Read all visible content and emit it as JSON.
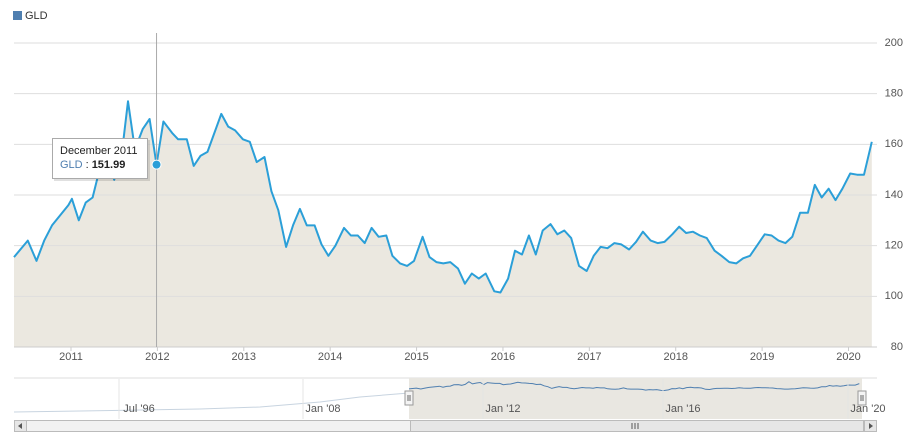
{
  "chart_data": {
    "type": "area",
    "ylim": [
      80,
      200
    ],
    "yticks": [
      80,
      100,
      120,
      140,
      160,
      180,
      200
    ],
    "xlim": [
      2010.34,
      2020.33
    ],
    "xticks": [
      2011,
      2012,
      2013,
      2014,
      2015,
      2016,
      2017,
      2018,
      2019,
      2020
    ],
    "grid": true,
    "legend": "top-left",
    "fill_color": "#ebe8e0",
    "series": [
      {
        "name": "GLD",
        "color": "#2b9fd8",
        "legend_color": "#4f7fb0",
        "x": [
          2010.34,
          2010.5,
          2010.6,
          2010.69,
          2010.78,
          2010.97,
          2011.01,
          2011.09,
          2011.17,
          2011.25,
          2011.33,
          2011.43,
          2011.5,
          2011.58,
          2011.66,
          2011.74,
          2011.83,
          2011.91,
          2011.99,
          2012.07,
          2012.17,
          2012.24,
          2012.34,
          2012.42,
          2012.5,
          2012.58,
          2012.66,
          2012.74,
          2012.82,
          2012.9,
          2012.99,
          2013.07,
          2013.15,
          2013.24,
          2013.32,
          2013.4,
          2013.49,
          2013.57,
          2013.65,
          2013.73,
          2013.82,
          2013.9,
          2013.98,
          2014.06,
          2014.16,
          2014.24,
          2014.32,
          2014.4,
          2014.48,
          2014.56,
          2014.65,
          2014.72,
          2014.81,
          2014.89,
          2014.97,
          2015.07,
          2015.15,
          2015.23,
          2015.31,
          2015.39,
          2015.48,
          2015.56,
          2015.64,
          2015.72,
          2015.8,
          2015.9,
          2015.97,
          2016.06,
          2016.14,
          2016.22,
          2016.3,
          2016.38,
          2016.46,
          2016.55,
          2016.63,
          2016.71,
          2016.79,
          2016.88,
          2016.97,
          2017.05,
          2017.13,
          2017.21,
          2017.29,
          2017.37,
          2017.46,
          2017.54,
          2017.62,
          2017.71,
          2017.79,
          2017.87,
          2017.96,
          2018.04,
          2018.12,
          2018.2,
          2018.28,
          2018.36,
          2018.45,
          2018.53,
          2018.62,
          2018.7,
          2018.78,
          2018.86,
          2018.95,
          2019.03,
          2019.11,
          2019.19,
          2019.27,
          2019.35,
          2019.44,
          2019.53,
          2019.61,
          2019.69,
          2019.77,
          2019.85,
          2019.93,
          2020.02,
          2020.1,
          2020.18,
          2020.27
        ],
        "values": [
          115.5,
          122,
          114,
          122,
          128,
          136,
          138.5,
          130,
          137,
          139,
          150,
          152,
          146,
          154,
          177,
          158,
          166,
          170,
          151.99,
          169,
          164.5,
          162,
          162,
          151.5,
          155.5,
          157,
          164.5,
          172,
          167,
          165.5,
          162,
          161,
          153,
          155,
          141.5,
          134,
          119.5,
          128,
          134.5,
          128,
          128,
          120.5,
          116,
          120,
          127,
          124,
          124,
          121,
          127,
          123.5,
          124,
          116,
          113,
          112,
          114,
          123.5,
          115.5,
          113.5,
          113,
          113.5,
          111,
          105,
          109,
          107,
          109,
          102,
          101.5,
          107,
          118,
          116.5,
          124,
          116.5,
          126,
          128.5,
          124.5,
          126,
          123,
          112,
          110,
          116,
          119.5,
          119,
          121,
          120.5,
          118.5,
          121.5,
          125.5,
          122,
          121,
          121.5,
          124.5,
          127.5,
          125,
          125.5,
          124,
          123,
          118,
          116,
          113.5,
          113,
          115,
          116,
          120.5,
          124.5,
          124,
          122,
          121,
          123.5,
          133,
          133,
          144,
          139,
          142.5,
          138,
          142.5,
          148.5,
          148,
          148,
          161
        ]
      }
    ],
    "tooltip": {
      "title": "December 2011",
      "separator": ":",
      "value": 151.99
    },
    "navigator": {
      "labels": [
        "Jul '96",
        "Jan '08",
        "Jan '12",
        "Jan '16",
        "Jan '20"
      ]
    }
  }
}
